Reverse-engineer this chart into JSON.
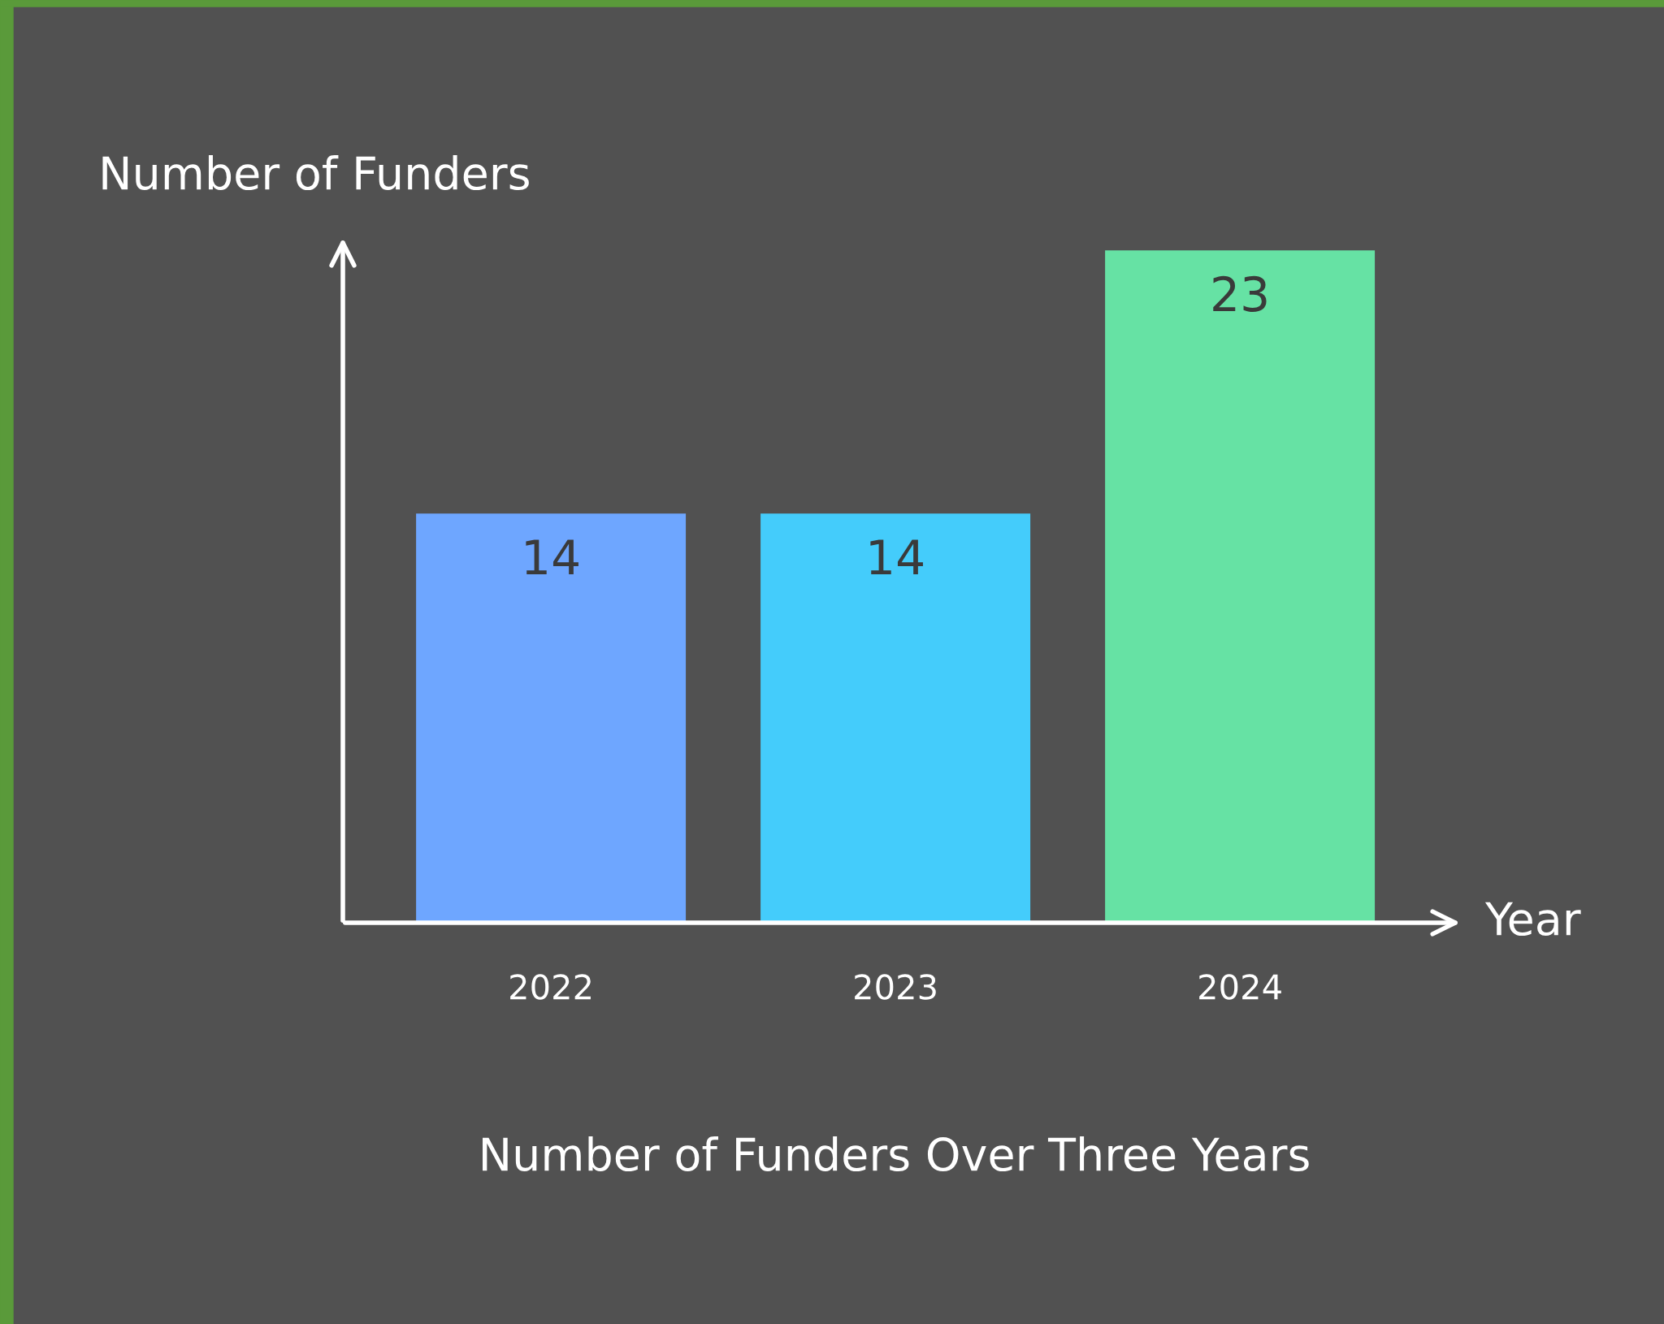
{
  "chart_data": {
    "type": "bar",
    "title": "Number of Funders Over Three Years",
    "xlabel": "Year",
    "ylabel": "Number of Funders",
    "categories": [
      "2022",
      "2023",
      "2024"
    ],
    "values": [
      14,
      14,
      23
    ],
    "colors": [
      "#6ea6ff",
      "#44ccfb",
      "#66e2a4"
    ],
    "data_labels": true
  }
}
